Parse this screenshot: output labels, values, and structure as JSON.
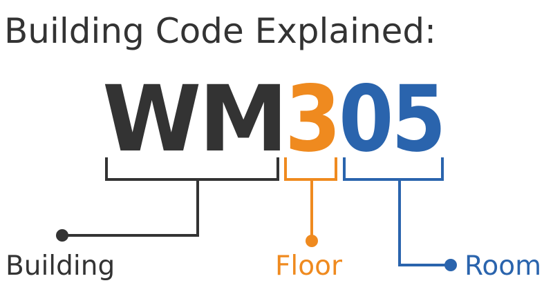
{
  "title": "Building Code Explained:",
  "code": {
    "building": "WM",
    "floor": "3",
    "room": "05"
  },
  "labels": {
    "building": "Building",
    "floor": "Floor",
    "room": "Room"
  },
  "colors": {
    "building": "#333333",
    "floor": "#ef8a1f",
    "room": "#2a64ad",
    "title": "#333333"
  }
}
